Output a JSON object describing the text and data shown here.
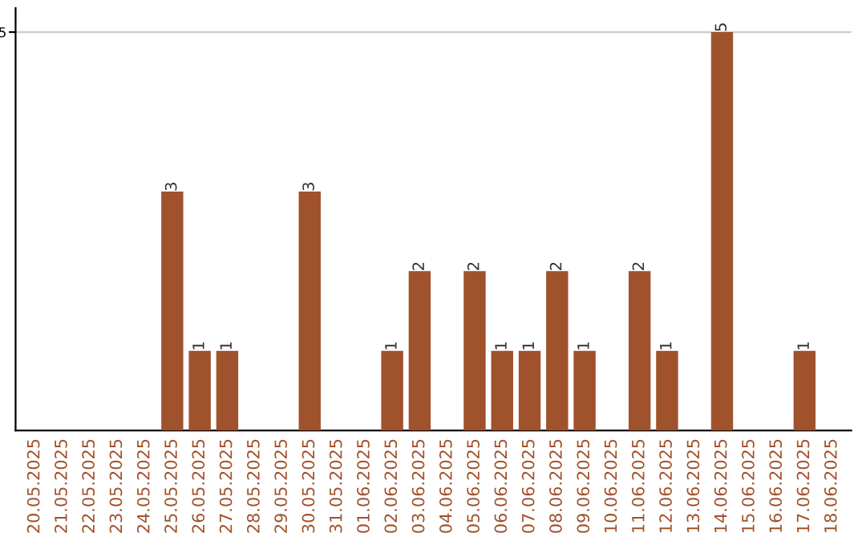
{
  "chart_data": {
    "type": "bar",
    "categories": [
      "20.05.2025",
      "21.05.2025",
      "22.05.2025",
      "23.05.2025",
      "24.05.2025",
      "25.05.2025",
      "26.05.2025",
      "27.05.2025",
      "28.05.2025",
      "29.05.2025",
      "30.05.2025",
      "31.05.2025",
      "01.06.2025",
      "02.06.2025",
      "03.06.2025",
      "04.06.2025",
      "05.06.2025",
      "06.06.2025",
      "07.06.2025",
      "08.06.2025",
      "09.06.2025",
      "10.06.2025",
      "11.06.2025",
      "12.06.2025",
      "13.06.2025",
      "14.06.2025",
      "15.06.2025",
      "16.06.2025",
      "17.06.2025",
      "18.06.2025"
    ],
    "values": [
      0,
      0,
      0,
      0,
      0,
      3,
      1,
      1,
      0,
      0,
      3,
      0,
      0,
      1,
      2,
      0,
      2,
      1,
      1,
      2,
      1,
      0,
      2,
      1,
      0,
      5,
      0,
      0,
      1,
      0
    ],
    "value_labels": [
      null,
      null,
      null,
      null,
      null,
      "3",
      "1",
      "1",
      null,
      null,
      "3",
      null,
      null,
      "1",
      "2",
      null,
      "2",
      "1",
      "1",
      "2",
      "1",
      null,
      "2",
      "1",
      null,
      "5",
      null,
      null,
      "1",
      null
    ],
    "color": "#a0522d",
    "ylim": [
      0,
      5.3
    ],
    "yticks": [
      5
    ],
    "grid": "y"
  }
}
